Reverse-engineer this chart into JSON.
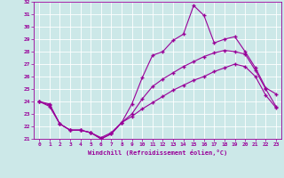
{
  "xlabel": "Windchill (Refroidissement éolien,°C)",
  "xlim": [
    -0.5,
    23.5
  ],
  "ylim": [
    21,
    32
  ],
  "xticks": [
    0,
    1,
    2,
    3,
    4,
    5,
    6,
    7,
    8,
    9,
    10,
    11,
    12,
    13,
    14,
    15,
    16,
    17,
    18,
    19,
    20,
    21,
    22,
    23
  ],
  "yticks": [
    21,
    22,
    23,
    24,
    25,
    26,
    27,
    28,
    29,
    30,
    31,
    32
  ],
  "background_color": "#cce8e8",
  "grid_color": "#ffffff",
  "line_color": "#990099",
  "line1_x": [
    0,
    1,
    2,
    3,
    4,
    5,
    6,
    7,
    8,
    9,
    10,
    11,
    12,
    13,
    14,
    15,
    16,
    17,
    18,
    19,
    20,
    21,
    22,
    23
  ],
  "line1_y": [
    24.0,
    23.8,
    22.2,
    21.7,
    21.7,
    21.5,
    21.0,
    21.4,
    22.3,
    23.8,
    25.9,
    27.7,
    28.0,
    28.9,
    29.4,
    31.7,
    30.9,
    28.7,
    29.0,
    29.2,
    28.0,
    26.7,
    25.1,
    24.6
  ],
  "line2_x": [
    0,
    1,
    2,
    3,
    4,
    5,
    6,
    7,
    8,
    9,
    10,
    11,
    12,
    13,
    14,
    15,
    16,
    17,
    18,
    19,
    20,
    21,
    22,
    23
  ],
  "line2_y": [
    24.0,
    23.7,
    22.2,
    21.7,
    21.7,
    21.5,
    21.0,
    21.4,
    22.3,
    23.0,
    24.2,
    25.2,
    25.8,
    26.3,
    26.8,
    27.2,
    27.6,
    27.9,
    28.1,
    28.0,
    27.8,
    26.5,
    25.0,
    23.6
  ],
  "line3_x": [
    0,
    1,
    2,
    3,
    4,
    5,
    6,
    7,
    8,
    9,
    10,
    11,
    12,
    13,
    14,
    15,
    16,
    17,
    18,
    19,
    20,
    21,
    22,
    23
  ],
  "line3_y": [
    24.0,
    23.6,
    22.2,
    21.7,
    21.7,
    21.5,
    21.1,
    21.5,
    22.3,
    22.8,
    23.4,
    23.9,
    24.4,
    24.9,
    25.3,
    25.7,
    26.0,
    26.4,
    26.7,
    27.0,
    26.8,
    26.0,
    24.5,
    23.5
  ],
  "marker": "+",
  "markersize": 2.5,
  "linewidth": 0.8,
  "tick_fontsize": 4.5,
  "xlabel_fontsize": 5.0
}
